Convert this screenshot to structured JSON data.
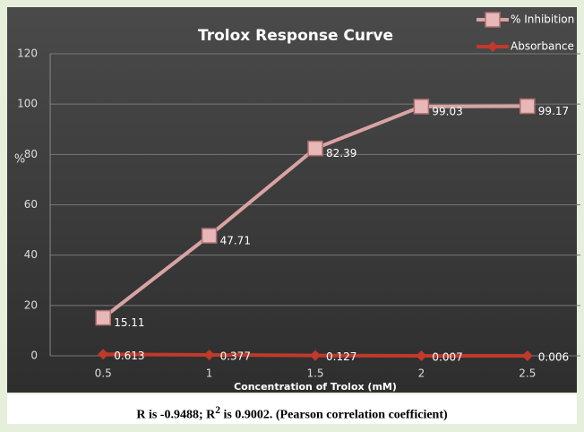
{
  "chart_data": {
    "type": "line",
    "title": "Trolox Response Curve",
    "x_label": "Concentration of Trolox (mM)",
    "y_label": "%",
    "categories": [
      "0.5",
      "1",
      "1.5",
      "2",
      "2.5"
    ],
    "series": [
      {
        "name": "% Inhibition",
        "color": "#d9a3a3",
        "marker": "square",
        "values": [
          15.11,
          47.71,
          82.39,
          99.03,
          99.17
        ]
      },
      {
        "name": "Absorbance",
        "color": "#c0392b",
        "marker": "diamond",
        "values": [
          0.613,
          0.377,
          0.127,
          0.007,
          0.006
        ]
      }
    ],
    "ylim": [
      0,
      120
    ],
    "yticks": [
      0,
      20,
      40,
      60,
      80,
      100,
      120
    ],
    "grid": true,
    "legend": "top-right"
  },
  "caption": {
    "before": "R is -0.9488; R",
    "superscript": "2",
    "after": " is 0.9002. (Pearson correlation coefficient)"
  }
}
